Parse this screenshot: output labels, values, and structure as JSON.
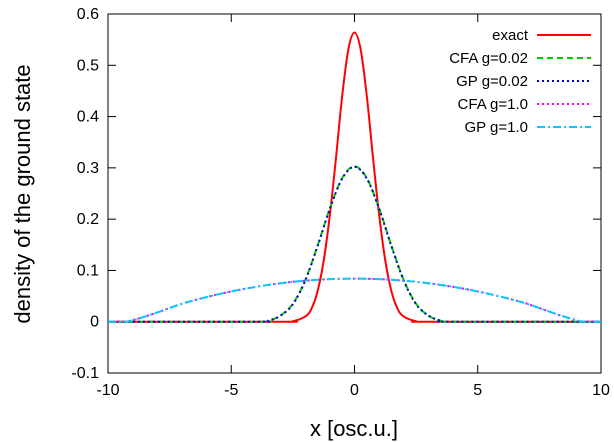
{
  "chart_data": {
    "type": "line",
    "xlabel": "x [osc.u.]",
    "ylabel": "density of the ground state",
    "xlim": [
      -10,
      10
    ],
    "ylim": [
      -0.1,
      0.6
    ],
    "xticks": [
      -10,
      -5,
      0,
      5,
      10
    ],
    "xtick_labels": [
      "-10",
      "-5",
      "0",
      "5",
      "10"
    ],
    "yticks": [
      -0.1,
      0,
      0.1,
      0.2,
      0.3,
      0.4,
      0.5,
      0.6
    ],
    "ytick_labels": [
      "-0.1",
      "0",
      "0.1",
      "0.2",
      "0.3",
      "0.4",
      "0.5",
      "0.6"
    ],
    "grid": false,
    "legend_position": "top-right",
    "series": [
      {
        "name": "exact",
        "color": "#ff0000",
        "dash": "solid",
        "x": [
          -10,
          -3,
          -2.5,
          -2,
          -1.75,
          -1.5,
          -1.25,
          -1,
          -0.75,
          -0.5,
          -0.25,
          0,
          0.25,
          0.5,
          0.75,
          1,
          1.25,
          1.5,
          1.75,
          2,
          2.5,
          3,
          10
        ],
        "y": [
          0,
          0,
          0.001,
          0.01,
          0.025,
          0.059,
          0.119,
          0.208,
          0.32,
          0.44,
          0.531,
          0.564,
          0.531,
          0.44,
          0.32,
          0.208,
          0.119,
          0.059,
          0.025,
          0.01,
          0.001,
          0,
          0
        ]
      },
      {
        "name": "CFA g=0.02",
        "color": "#00cc00",
        "dash": "dashed",
        "x": [
          -10,
          -4,
          -3.5,
          -3,
          -2.5,
          -2,
          -1.5,
          -1,
          -0.5,
          0,
          0.5,
          1,
          1.5,
          2,
          2.5,
          3,
          3.5,
          4,
          10
        ],
        "y": [
          0,
          0,
          0.002,
          0.012,
          0.035,
          0.081,
          0.148,
          0.221,
          0.28,
          0.303,
          0.28,
          0.221,
          0.148,
          0.081,
          0.035,
          0.012,
          0.002,
          0,
          0
        ]
      },
      {
        "name": "GP g=0.02",
        "color": "#0000cc",
        "dash": "dotted",
        "x": [
          -10,
          -4,
          -3.5,
          -3,
          -2.5,
          -2,
          -1.5,
          -1,
          -0.5,
          0,
          0.5,
          1,
          1.5,
          2,
          2.5,
          3,
          3.5,
          4,
          10
        ],
        "y": [
          0,
          0,
          0.002,
          0.012,
          0.034,
          0.08,
          0.147,
          0.22,
          0.279,
          0.302,
          0.279,
          0.22,
          0.147,
          0.08,
          0.034,
          0.012,
          0.002,
          0,
          0
        ]
      },
      {
        "name": "CFA g=1.0",
        "color": "#ff00ff",
        "dash": "dotted",
        "x": [
          -10,
          -9.3,
          -9,
          -8.5,
          -8,
          -7,
          -6,
          -5,
          -4,
          -3,
          -2,
          -1,
          0,
          1,
          2,
          3,
          4,
          5,
          6,
          7,
          8,
          8.5,
          9,
          9.3,
          10
        ],
        "y": [
          0,
          0,
          0.003,
          0.01,
          0.018,
          0.035,
          0.048,
          0.059,
          0.068,
          0.075,
          0.08,
          0.083,
          0.084,
          0.083,
          0.08,
          0.075,
          0.068,
          0.059,
          0.048,
          0.035,
          0.018,
          0.01,
          0.003,
          0,
          0
        ]
      },
      {
        "name": "GP g=1.0",
        "color": "#00ccff",
        "dash": "dashdot",
        "x": [
          -10,
          -9.3,
          -9,
          -8.5,
          -8,
          -7,
          -6,
          -5,
          -4,
          -3,
          -2,
          -1,
          0,
          1,
          2,
          3,
          4,
          5,
          6,
          7,
          8,
          8.5,
          9,
          9.3,
          10
        ],
        "y": [
          0,
          0,
          0.003,
          0.01,
          0.018,
          0.035,
          0.048,
          0.059,
          0.068,
          0.075,
          0.08,
          0.083,
          0.084,
          0.083,
          0.08,
          0.075,
          0.068,
          0.059,
          0.048,
          0.035,
          0.018,
          0.01,
          0.003,
          0,
          0
        ]
      }
    ]
  }
}
